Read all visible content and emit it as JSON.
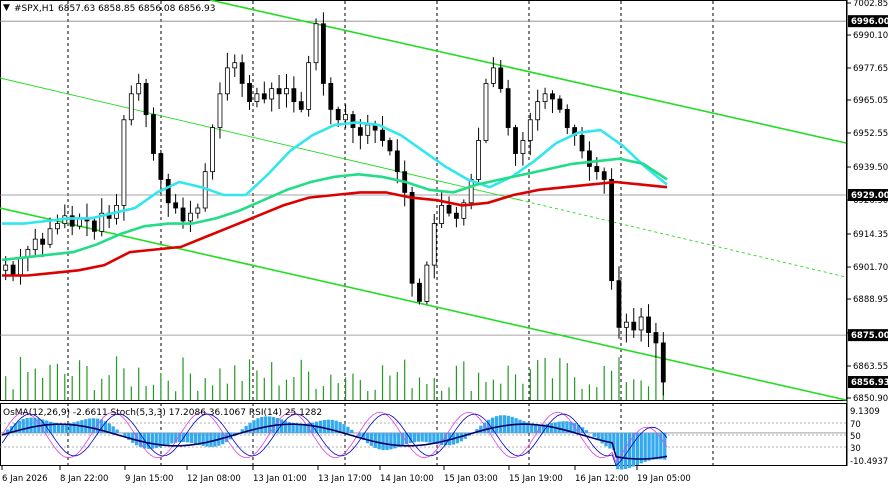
{
  "header": {
    "symbol": "#SPX,H1",
    "ohlc": "6857.63 6858.85 6856.08 6856.93"
  },
  "indicator_header": "OsMA(12,26,9) -2.6611  Stoch(5,3,3) 17.2086 36.1067  RSI(14) 25.1282",
  "colors": {
    "background": "#ffffff",
    "candle": "#000000",
    "grid": "#000000",
    "ma_fast": "#33e6ee",
    "ma_mid": "#22dd88",
    "ma_slow": "#dd0000",
    "channel": "#22dd22",
    "volume": "#229922",
    "osma_hist": "#33aaee",
    "stoch_main": "#0000cc",
    "stoch_signal": "#dd44dd",
    "rsi": "#000066",
    "price_label_bg": "#000000",
    "price_label_text": "#ffffff"
  },
  "chart_data": {
    "type": "candlestick",
    "symbol": "#SPX",
    "timeframe": "H1",
    "ylim": [
      6850,
      7003
    ],
    "y_ticks": [
      "7002.85",
      "6990.10",
      "6977.65",
      "6965.05",
      "6952.55",
      "6939.50",
      "6926.90",
      "6914.35",
      "6901.70",
      "6888.95",
      "6876.45",
      "6863.55",
      "6850.90"
    ],
    "x_ticks": [
      "6 Jan 2026",
      "8 Jan 22:00",
      "9 Jan 15:00",
      "12 Jan 08:00",
      "13 Jan 01:00",
      "13 Jan 17:00",
      "14 Jan 10:00",
      "15 Jan 03:00",
      "15 Jan 19:00",
      "16 Jan 12:00",
      "19 Jan 05:00"
    ],
    "horizontal_levels": [
      {
        "label": "6996.00",
        "value": 6996.0
      },
      {
        "label": "6929.00",
        "value": 6929.0
      },
      {
        "label": "6875.00",
        "value": 6875.0
      }
    ],
    "current_price": {
      "label": "6856.93",
      "value": 6856.93
    },
    "close_series": [
      6902,
      6898,
      6905,
      6908,
      6912,
      6910,
      6916,
      6918,
      6921,
      6917,
      6920,
      6919,
      6915,
      6922,
      6920,
      6925,
      6958,
      6968,
      6972,
      6960,
      6945,
      6935,
      6926,
      6924,
      6919,
      6922,
      6924,
      6938,
      6955,
      6968,
      6978,
      6980,
      6972,
      6965,
      6968,
      6966,
      6970,
      6968,
      6970,
      6965,
      6962,
      6980,
      6995,
      6972,
      6962,
      6958,
      6960,
      6955,
      6952,
      6956,
      6954,
      6950,
      6946,
      6938,
      6930,
      6895,
      6888,
      6902,
      6918,
      6925,
      6922,
      6920,
      6926,
      6935,
      6950,
      6972,
      6978,
      6970,
      6955,
      6945,
      6950,
      6958,
      6965,
      6968,
      6966,
      6962,
      6955,
      6952,
      6946,
      6940,
      6938,
      6935,
      6896,
      6878,
      6880,
      6877,
      6882,
      6876,
      6872,
      6856.93
    ],
    "series": [
      {
        "name": "ma_fast",
        "values": [
          6918,
          6918,
          6919,
          6920,
          6920,
          6922,
          6924,
          6930,
          6934,
          6932,
          6929,
          6929,
          6937,
          6946,
          6952,
          6956,
          6957,
          6956,
          6952,
          6946,
          6940,
          6935,
          6932,
          6936,
          6942,
          6949,
          6953,
          6954,
          6948,
          6940,
          6933
        ]
      },
      {
        "name": "ma_mid",
        "values": [
          6904,
          6905,
          6906,
          6907,
          6910,
          6914,
          6917,
          6918,
          6918,
          6920,
          6923,
          6927,
          6931,
          6934,
          6936,
          6937,
          6936,
          6934,
          6931,
          6930,
          6933,
          6935,
          6937,
          6939,
          6941,
          6942,
          6943,
          6941,
          6935
        ]
      },
      {
        "name": "ma_slow",
        "values": [
          6898,
          6898,
          6899,
          6900,
          6902,
          6907,
          6908,
          6909,
          6913,
          6917,
          6921,
          6925,
          6928,
          6929,
          6930,
          6930,
          6928,
          6927,
          6925,
          6926,
          6929,
          6931,
          6932,
          6933,
          6934,
          6933,
          6932
        ]
      }
    ],
    "oscillator_ylim": [
      -10.4937,
      9.1309
    ],
    "oscillator_ticks": [
      "9.1309",
      "70",
      "50",
      "30",
      "-10.4937"
    ]
  }
}
